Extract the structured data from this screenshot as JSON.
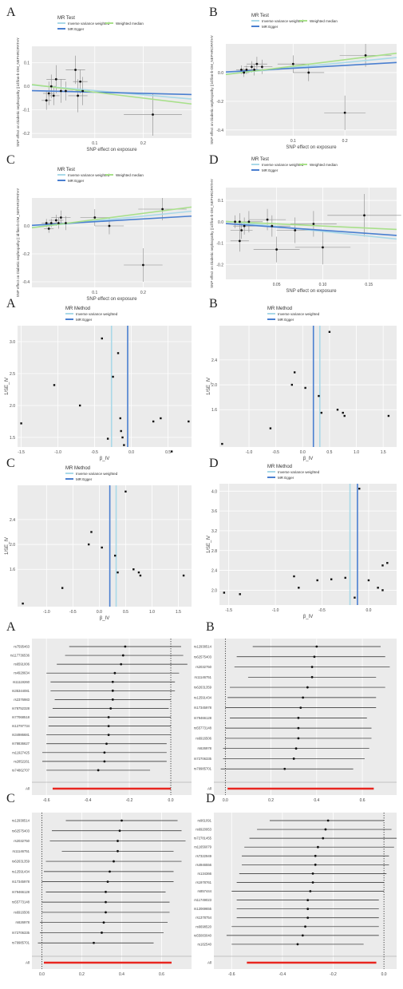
{
  "figure": {
    "row_labels": [
      "A",
      "B",
      "C",
      "D"
    ],
    "scatter_legend": {
      "title": "MR Test",
      "items": [
        {
          "name": "Inverse variance weighted",
          "color": "#a9d9e8"
        },
        {
          "name": "MR Egger",
          "color": "#4a7fd0"
        },
        {
          "name": "Weighted median",
          "color": "#a8e08a"
        }
      ]
    },
    "funnel_legend": {
      "title": "MR Method",
      "items": [
        {
          "name": "Inverse variance weighted",
          "color": "#a9d9e8"
        },
        {
          "name": "MR Egger",
          "color": "#4a7fd0"
        }
      ]
    },
    "scatter_ylabel": "SNP effect on Diabetic nephropathy || id:finn-b-DM_NEPHROPATHY",
    "scatter_xlabel": "SNP effect on exposure",
    "funnel_ylabel": "1/SE_IV",
    "funnel_xlabel": "β_IV",
    "forest_all_label": "All",
    "colors": {
      "panel_bg": "#ebebeb",
      "grid": "#ffffff",
      "point": "#111111",
      "forest_all": "#e8261f"
    }
  },
  "chart_data": [
    {
      "id": "scatter-A",
      "type": "scatter",
      "label": "A",
      "xlim": [
        -0.03,
        0.3
      ],
      "ylim": [
        -0.22,
        0.17
      ],
      "xticks": [
        0.1,
        0.2
      ],
      "yticks": [
        -0.2,
        -0.1,
        0.0,
        0.1
      ],
      "xtick_labels": [
        "0.1",
        "0.2"
      ],
      "ytick_labels": [
        "-0.2",
        "-0.1",
        "0.0",
        "0.1"
      ],
      "points": [
        [
          0.0,
          -0.06
        ],
        [
          0.005,
          -0.03
        ],
        [
          0.01,
          0.0
        ],
        [
          0.015,
          -0.04
        ],
        [
          0.02,
          0.03
        ],
        [
          0.03,
          -0.02
        ],
        [
          0.04,
          -0.02
        ],
        [
          0.06,
          0.07
        ],
        [
          0.065,
          -0.04
        ],
        [
          0.07,
          0.02
        ],
        [
          0.075,
          -0.02
        ],
        [
          0.22,
          -0.12
        ]
      ],
      "xerr": [
        0.01,
        0.012,
        0.01,
        0.012,
        0.02,
        0.015,
        0.015,
        0.02,
        0.02,
        0.015,
        0.015,
        0.06
      ],
      "yerr": [
        0.04,
        0.05,
        0.05,
        0.04,
        0.06,
        0.05,
        0.04,
        0.06,
        0.07,
        0.05,
        0.06,
        0.09
      ],
      "lines": [
        {
          "name": "Inverse variance weighted",
          "slope": -0.18,
          "intercept": 0.0
        },
        {
          "name": "MR Egger",
          "slope": -0.05,
          "intercept": -0.02
        },
        {
          "name": "Weighted median",
          "slope": -0.25,
          "intercept": 0.0
        }
      ]
    },
    {
      "id": "scatter-B",
      "type": "scatter",
      "label": "B",
      "xlim": [
        -0.03,
        0.3
      ],
      "ylim": [
        -0.44,
        0.2
      ],
      "xticks": [
        0.1,
        0.2
      ],
      "yticks": [
        -0.4,
        -0.2,
        0.0
      ],
      "xtick_labels": [
        "0.1",
        "0.2"
      ],
      "ytick_labels": [
        "-0.4",
        "-0.2",
        "0.0"
      ],
      "points": [
        [
          0.0,
          0.02
        ],
        [
          0.005,
          0.0
        ],
        [
          0.01,
          0.02
        ],
        [
          0.02,
          0.04
        ],
        [
          0.025,
          0.02
        ],
        [
          0.03,
          0.06
        ],
        [
          0.04,
          0.04
        ],
        [
          0.1,
          0.06
        ],
        [
          0.13,
          0.0
        ],
        [
          0.24,
          0.12
        ],
        [
          0.2,
          -0.28
        ]
      ],
      "xerr": [
        0.01,
        0.01,
        0.01,
        0.015,
        0.015,
        0.02,
        0.02,
        0.03,
        0.03,
        0.05,
        0.04
      ],
      "yerr": [
        0.03,
        0.03,
        0.03,
        0.04,
        0.04,
        0.05,
        0.05,
        0.06,
        0.06,
        0.08,
        0.12
      ],
      "lines": [
        {
          "name": "Inverse variance weighted",
          "slope": 0.35,
          "intercept": 0.0
        },
        {
          "name": "MR Egger",
          "slope": 0.2,
          "intercept": 0.01
        },
        {
          "name": "Weighted median",
          "slope": 0.45,
          "intercept": 0.0
        }
      ]
    },
    {
      "id": "scatter-C",
      "type": "scatter",
      "label": "C",
      "xlim": [
        -0.03,
        0.3
      ],
      "ylim": [
        -0.44,
        0.2
      ],
      "xticks": [
        0.1,
        0.2
      ],
      "yticks": [
        -0.4,
        -0.2,
        0.0
      ],
      "xtick_labels": [
        "0.1",
        "0.2"
      ],
      "ytick_labels": [
        "-0.4",
        "-0.2",
        "0.0"
      ],
      "points": [
        [
          0.0,
          0.02
        ],
        [
          0.005,
          -0.02
        ],
        [
          0.01,
          0.02
        ],
        [
          0.02,
          0.04
        ],
        [
          0.025,
          0.02
        ],
        [
          0.03,
          0.06
        ],
        [
          0.04,
          0.02
        ],
        [
          0.1,
          0.06
        ],
        [
          0.13,
          0.0
        ],
        [
          0.24,
          0.12
        ],
        [
          0.2,
          -0.28
        ]
      ],
      "xerr": [
        0.01,
        0.01,
        0.01,
        0.015,
        0.015,
        0.02,
        0.02,
        0.03,
        0.03,
        0.05,
        0.04
      ],
      "yerr": [
        0.03,
        0.03,
        0.03,
        0.04,
        0.04,
        0.05,
        0.05,
        0.06,
        0.06,
        0.08,
        0.12
      ],
      "lines": [
        {
          "name": "Inverse variance weighted",
          "slope": 0.35,
          "intercept": 0.0
        },
        {
          "name": "MR Egger",
          "slope": 0.2,
          "intercept": 0.01
        },
        {
          "name": "Weighted median",
          "slope": 0.45,
          "intercept": 0.0
        }
      ]
    },
    {
      "id": "scatter-D",
      "type": "scatter",
      "label": "D",
      "xlim": [
        -0.005,
        0.18
      ],
      "ylim": [
        -0.27,
        0.16
      ],
      "xticks": [
        0.05,
        0.1,
        0.15
      ],
      "yticks": [
        -0.2,
        -0.1,
        0.0,
        0.1
      ],
      "xtick_labels": [
        "0.05",
        "0.10",
        "0.15"
      ],
      "ytick_labels": [
        "-0.2",
        "-0.1",
        "0.0",
        "0.1"
      ],
      "points": [
        [
          0.005,
          0.0
        ],
        [
          0.01,
          0.0
        ],
        [
          0.012,
          -0.04
        ],
        [
          0.015,
          -0.02
        ],
        [
          0.02,
          0.0
        ],
        [
          0.04,
          0.01
        ],
        [
          0.045,
          -0.02
        ],
        [
          0.05,
          -0.13
        ],
        [
          0.07,
          -0.04
        ],
        [
          0.09,
          -0.01
        ],
        [
          0.1,
          -0.12
        ],
        [
          0.145,
          0.03
        ],
        [
          0.01,
          -0.09
        ]
      ],
      "xerr": [
        0.01,
        0.01,
        0.012,
        0.012,
        0.015,
        0.02,
        0.02,
        0.025,
        0.02,
        0.025,
        0.03,
        0.04,
        0.01
      ],
      "yerr": [
        0.03,
        0.04,
        0.04,
        0.04,
        0.05,
        0.05,
        0.05,
        0.06,
        0.06,
        0.06,
        0.08,
        0.1,
        0.05
      ],
      "lines": [
        {
          "name": "Inverse variance weighted",
          "slope": -0.45,
          "intercept": 0.0
        },
        {
          "name": "MR Egger",
          "slope": -0.3,
          "intercept": -0.01
        },
        {
          "name": "Weighted median",
          "slope": -0.2,
          "intercept": 0.0
        }
      ]
    },
    {
      "id": "funnel-A",
      "type": "scatter",
      "label": "A",
      "xlim": [
        -1.55,
        0.82
      ],
      "ylim": [
        1.35,
        3.25
      ],
      "xticks": [
        -1.5,
        -1.0,
        -0.5,
        0.0,
        0.5
      ],
      "yticks": [
        1.5,
        2.0,
        2.5,
        3.0
      ],
      "xtick_labels": [
        "-1.5",
        "-1.0",
        "-0.5",
        "0.0",
        "0.5"
      ],
      "ytick_labels": [
        "1.5",
        "2.0",
        "2.5",
        "3.0"
      ],
      "points": [
        [
          -1.5,
          1.72
        ],
        [
          -1.05,
          2.32
        ],
        [
          -0.7,
          2.0
        ],
        [
          -0.4,
          3.05
        ],
        [
          -0.25,
          2.45
        ],
        [
          -0.32,
          1.48
        ],
        [
          -0.18,
          2.82
        ],
        [
          -0.15,
          1.8
        ],
        [
          -0.14,
          1.6
        ],
        [
          -0.12,
          1.5
        ],
        [
          -0.1,
          1.38
        ],
        [
          0.3,
          1.75
        ],
        [
          0.4,
          1.8
        ],
        [
          0.55,
          1.28
        ],
        [
          0.78,
          1.75
        ]
      ],
      "vlines": [
        {
          "name": "Inverse variance weighted",
          "x": -0.27
        },
        {
          "name": "MR Egger",
          "x": -0.05
        }
      ]
    },
    {
      "id": "funnel-B",
      "type": "scatter",
      "label": "B",
      "xlim": [
        -1.55,
        1.75
      ],
      "ylim": [
        1.0,
        2.95
      ],
      "xticks": [
        -1.0,
        -0.5,
        0.0,
        0.5,
        1.0,
        1.5
      ],
      "yticks": [
        1.6,
        2.0,
        2.4
      ],
      "xtick_labels": [
        "-1.0",
        "-0.5",
        "0.0",
        "0.5",
        "1.0",
        "1.5"
      ],
      "ytick_labels": [
        "1.6",
        "2.0",
        "2.4"
      ],
      "points": [
        [
          -1.5,
          1.05
        ],
        [
          -0.6,
          1.3
        ],
        [
          -0.2,
          2.0
        ],
        [
          -0.15,
          2.2
        ],
        [
          0.05,
          1.95
        ],
        [
          0.5,
          2.85
        ],
        [
          0.3,
          1.82
        ],
        [
          0.35,
          1.55
        ],
        [
          0.65,
          1.6
        ],
        [
          0.75,
          1.55
        ],
        [
          0.78,
          1.5
        ],
        [
          1.6,
          1.5
        ]
      ],
      "vlines": [
        {
          "name": "Inverse variance weighted",
          "x": 0.32
        },
        {
          "name": "MR Egger",
          "x": 0.2
        }
      ]
    },
    {
      "id": "funnel-C",
      "type": "scatter",
      "label": "C",
      "xlim": [
        -1.55,
        1.75
      ],
      "ylim": [
        1.0,
        2.95
      ],
      "xticks": [
        -1.0,
        -0.5,
        0.0,
        0.5,
        1.0,
        1.5
      ],
      "yticks": [
        1.6,
        2.0,
        2.4
      ],
      "xtick_labels": [
        "-1.0",
        "-0.5",
        "0.0",
        "0.5",
        "1.0",
        "1.5"
      ],
      "ytick_labels": [
        "1.6",
        "2.0",
        "2.4"
      ],
      "points": [
        [
          -1.45,
          1.05
        ],
        [
          -0.7,
          1.3
        ],
        [
          -0.2,
          2.0
        ],
        [
          -0.15,
          2.2
        ],
        [
          0.05,
          1.95
        ],
        [
          0.5,
          2.85
        ],
        [
          0.3,
          1.82
        ],
        [
          0.35,
          1.55
        ],
        [
          0.65,
          1.6
        ],
        [
          0.75,
          1.55
        ],
        [
          0.78,
          1.5
        ],
        [
          1.6,
          1.5
        ]
      ],
      "vlines": [
        {
          "name": "Inverse variance weighted",
          "x": 0.32
        },
        {
          "name": "MR Egger",
          "x": 0.2
        }
      ]
    },
    {
      "id": "funnel-D",
      "type": "scatter",
      "label": "D",
      "xlim": [
        -1.6,
        0.3
      ],
      "ylim": [
        1.7,
        4.15
      ],
      "xticks": [
        -1.5,
        -1.0,
        -0.5,
        0.0
      ],
      "yticks": [
        2.0,
        2.4,
        2.8,
        3.2,
        3.6,
        4.0
      ],
      "xtick_labels": [
        "-1.5",
        "-1.0",
        "-0.5",
        "0.0"
      ],
      "ytick_labels": [
        "2.0",
        "2.4",
        "2.8",
        "3.2",
        "3.6",
        "4.0"
      ],
      "points": [
        [
          -1.55,
          1.95
        ],
        [
          -1.38,
          1.92
        ],
        [
          -0.8,
          2.28
        ],
        [
          -0.75,
          2.05
        ],
        [
          -0.55,
          2.2
        ],
        [
          -0.4,
          2.22
        ],
        [
          -0.25,
          2.25
        ],
        [
          -0.15,
          1.85
        ],
        [
          -0.1,
          4.05
        ],
        [
          0.0,
          2.2
        ],
        [
          0.1,
          2.05
        ],
        [
          0.15,
          2.0
        ],
        [
          0.15,
          2.5
        ],
        [
          0.2,
          2.55
        ]
      ],
      "vlines": [
        {
          "name": "Inverse variance weighted",
          "x": -0.2
        },
        {
          "name": "MR Egger",
          "x": -0.12
        }
      ]
    },
    {
      "id": "forest-A",
      "type": "scatter",
      "label": "A",
      "xlim": [
        -0.67,
        0.1
      ],
      "xticks": [
        -0.6,
        -0.4,
        -0.2,
        0.0
      ],
      "xtick_labels": [
        "-0.6",
        "-0.4",
        "-0.2",
        "0.0"
      ],
      "snps": [
        "rs7595463",
        "rs117736536",
        "rs6591006",
        "rs4928634",
        "rs11119260",
        "rs35344081",
        "rs2376983",
        "rs78752328",
        "rs77068518",
        "rs12797734",
        "rs34986681",
        "rs78836627",
        "rs11927425",
        "rs2852261",
        "rs74862707"
      ],
      "est": [
        -0.22,
        -0.23,
        -0.24,
        -0.27,
        -0.28,
        -0.28,
        -0.28,
        -0.29,
        -0.3,
        -0.3,
        -0.3,
        -0.31,
        -0.32,
        -0.32,
        -0.35
      ],
      "lo": [
        -0.49,
        -0.51,
        -0.55,
        -0.6,
        -0.58,
        -0.58,
        -0.56,
        -0.57,
        -0.59,
        -0.59,
        -0.6,
        -0.6,
        -0.62,
        -0.62,
        -0.6
      ],
      "hi": [
        0.05,
        0.06,
        0.08,
        0.04,
        0.02,
        0.02,
        0.0,
        -0.01,
        0.0,
        0.0,
        0.0,
        -0.02,
        -0.02,
        -0.02,
        -0.1
      ],
      "all": {
        "lo": -0.57,
        "hi": 0.0
      }
    },
    {
      "id": "forest-B",
      "type": "scatter",
      "label": "B",
      "xlim": [
        -0.05,
        0.75
      ],
      "xticks": [
        0.0,
        0.2,
        0.4,
        0.6
      ],
      "xtick_labels": [
        "0.0",
        "0.2",
        "0.4",
        "0.6"
      ],
      "snps": [
        "rs12938514",
        "rs62575403",
        "rs2032750",
        "rs11146751",
        "rs62631359",
        "rs12591434",
        "rs17345978",
        "rs79466128",
        "rs55773148",
        "rs6916506",
        "rs626978",
        "rs72706335",
        "rs79985701"
      ],
      "est": [
        0.4,
        0.39,
        0.38,
        0.38,
        0.36,
        0.34,
        0.33,
        0.32,
        0.32,
        0.32,
        0.31,
        0.3,
        0.26
      ],
      "lo": [
        0.12,
        0.05,
        0.04,
        0.1,
        0.02,
        0.01,
        0.0,
        0.02,
        0.0,
        0.0,
        -0.01,
        -0.01,
        -0.02
      ],
      "hi": [
        0.68,
        0.7,
        0.72,
        0.66,
        0.7,
        0.66,
        0.66,
        0.62,
        0.64,
        0.64,
        0.63,
        0.61,
        0.56
      ],
      "all": {
        "lo": 0.01,
        "hi": 0.65
      }
    },
    {
      "id": "forest-C",
      "type": "scatter",
      "label": "C",
      "xlim": [
        -0.05,
        0.75
      ],
      "xticks": [
        0.0,
        0.2,
        0.4,
        0.6
      ],
      "xtick_labels": [
        "0.0",
        "0.2",
        "0.4",
        "0.6"
      ],
      "snps": [
        "rs12938514",
        "rs62575403",
        "rs2032750",
        "rs11146751",
        "rs62631359",
        "rs12591434",
        "rs17345978",
        "rs79466128",
        "rs55773148",
        "rs6916506",
        "rs626978",
        "rs72706335",
        "rs79985701"
      ],
      "est": [
        0.4,
        0.39,
        0.38,
        0.38,
        0.36,
        0.34,
        0.33,
        0.32,
        0.32,
        0.32,
        0.31,
        0.3,
        0.26
      ],
      "lo": [
        0.12,
        0.05,
        0.04,
        0.1,
        0.02,
        0.01,
        0.0,
        0.02,
        0.0,
        0.0,
        -0.01,
        -0.01,
        -0.02
      ],
      "hi": [
        0.68,
        0.7,
        0.72,
        0.66,
        0.7,
        0.66,
        0.66,
        0.62,
        0.64,
        0.64,
        0.63,
        0.61,
        0.56
      ],
      "all": {
        "lo": 0.01,
        "hi": 0.65
      }
    },
    {
      "id": "forest-D",
      "type": "scatter",
      "label": "D",
      "xlim": [
        -0.67,
        0.05
      ],
      "xticks": [
        -0.6,
        -0.4,
        -0.2,
        0.0
      ],
      "xtick_labels": [
        "-0.6",
        "-0.4",
        "-0.2",
        "0.0"
      ],
      "snps": [
        "rs961091",
        "rs6920953",
        "rs72781455",
        "rs11656079",
        "rs7322949",
        "rs4946556",
        "rs134366",
        "rs1978761",
        "rs857444",
        "rs11749023",
        "rs12069655",
        "rs1378754",
        "rs6698520",
        "rs55083040",
        "rs182540"
      ],
      "est": [
        -0.22,
        -0.23,
        -0.24,
        -0.26,
        -0.27,
        -0.27,
        -0.28,
        -0.28,
        -0.29,
        -0.3,
        -0.3,
        -0.3,
        -0.31,
        -0.32,
        -0.34
      ],
      "lo": [
        -0.45,
        -0.5,
        -0.53,
        -0.55,
        -0.56,
        -0.56,
        -0.57,
        -0.58,
        -0.6,
        -0.58,
        -0.58,
        -0.58,
        -0.6,
        -0.62,
        -0.6
      ],
      "hi": [
        0.0,
        0.03,
        0.05,
        0.04,
        0.02,
        0.02,
        0.01,
        0.0,
        0.0,
        -0.02,
        -0.02,
        -0.02,
        -0.02,
        -0.02,
        -0.08
      ],
      "all": {
        "lo": -0.54,
        "hi": -0.03
      }
    }
  ]
}
